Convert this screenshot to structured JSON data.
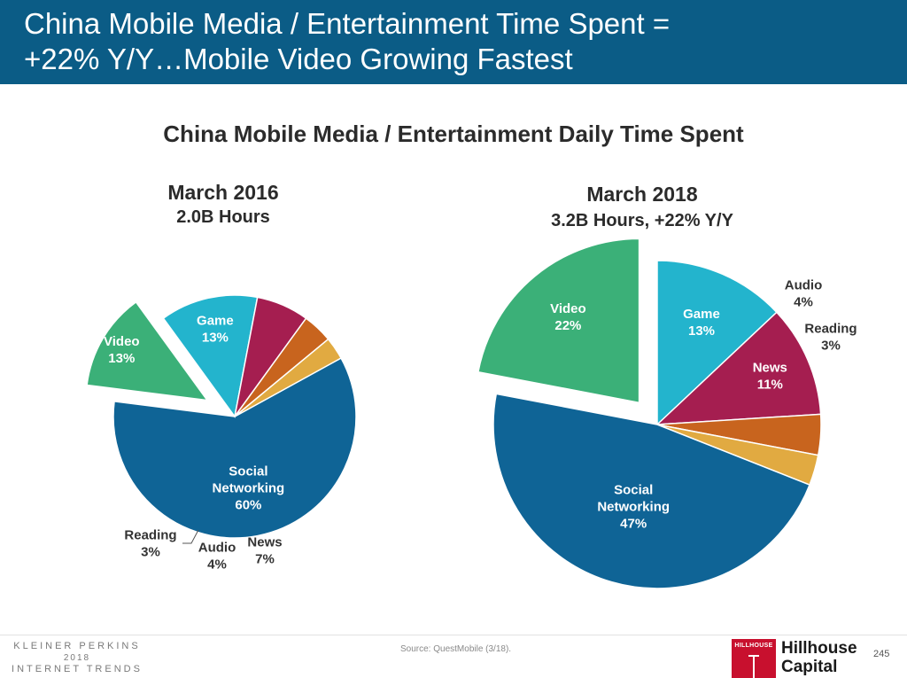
{
  "header": {
    "line1": "China Mobile Media / Entertainment Time Spent =",
    "line2": "+22% Y/Y…Mobile Video Growing Fastest"
  },
  "chart_title": "China Mobile Media / Entertainment Daily Time Spent",
  "chart_data": [
    {
      "type": "pie",
      "title": "March 2016",
      "subtitle": "2.0B Hours",
      "categories": [
        "Social Networking",
        "Video",
        "Game",
        "News",
        "Audio",
        "Reading"
      ],
      "values": [
        60,
        13,
        13,
        7,
        4,
        3
      ],
      "labels": [
        "60%",
        "13%",
        "13%",
        "7%",
        "4%",
        "3%"
      ],
      "exploded": [
        "Video"
      ],
      "colors": [
        "#0f6496",
        "#3bb078",
        "#23b4cd",
        "#a51e50",
        "#c8641e",
        "#e1aa41"
      ]
    },
    {
      "type": "pie",
      "title": "March 2018",
      "subtitle": "3.2B Hours, +22% Y/Y",
      "categories": [
        "Game",
        "News",
        "Audio",
        "Reading",
        "Social Networking",
        "Video"
      ],
      "values": [
        13,
        11,
        4,
        3,
        47,
        22
      ],
      "labels": [
        "13%",
        "11%",
        "4%",
        "3%",
        "47%",
        "22%"
      ],
      "exploded": [
        "Video"
      ],
      "colors": [
        "#23b4cd",
        "#a51e50",
        "#c8641e",
        "#e1aa41",
        "#0f6496",
        "#3bb078"
      ]
    }
  ],
  "footer": {
    "kp_line1": "KLEINER PERKINS",
    "kp_line2": "2018",
    "kp_line3": "INTERNET TRENDS",
    "source": "Source: QuestMobile (3/18).",
    "logo_text": "HILLHOUSE",
    "hh_line1": "Hillhouse",
    "hh_line2": "Capital",
    "page_number": "245"
  }
}
